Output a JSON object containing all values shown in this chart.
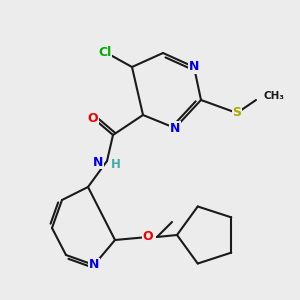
{
  "bg_color": "#ececec",
  "bond_color": "#1a1a1a",
  "colors": {
    "N": "#0000ee",
    "O": "#ee0000",
    "S": "#aaaa00",
    "Cl": "#00aa00",
    "C": "#1a1a1a",
    "H": "#44aaaa"
  }
}
